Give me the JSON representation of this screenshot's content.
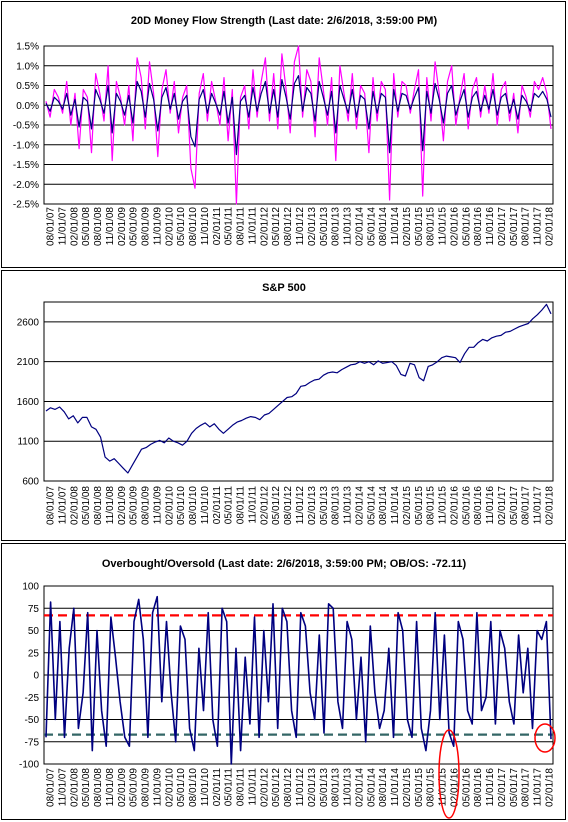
{
  "chart_data": [
    {
      "type": "line",
      "title": "20D Money Flow Strength (Last date: 2/6/2018, 3:59:00 PM)",
      "xlabel": "",
      "ylabel": "",
      "ylim": [
        -0.025,
        0.015
      ],
      "y_ticks": [
        "1.5%",
        "1.0%",
        "0.5%",
        "0.0%",
        "-0.5%",
        "-1.0%",
        "-1.5%",
        "-2.0%",
        "-2.5%"
      ],
      "x_ticks": [
        "08/01/07",
        "11/01/07",
        "02/01/08",
        "05/01/08",
        "08/01/08",
        "11/01/08",
        "02/01/09",
        "05/01/09",
        "08/01/09",
        "11/01/09",
        "02/01/10",
        "05/01/10",
        "08/01/10",
        "11/01/10",
        "02/01/11",
        "05/01/11",
        "08/01/11",
        "11/01/11",
        "02/01/12",
        "05/01/12",
        "08/01/12",
        "11/01/12",
        "02/01/13",
        "05/01/13",
        "08/01/13",
        "11/01/13",
        "02/01/14",
        "05/01/14",
        "08/01/14",
        "11/01/14",
        "02/01/15",
        "05/01/15",
        "08/01/15",
        "11/01/15",
        "02/01/16",
        "05/01/16",
        "08/01/16",
        "11/01/16",
        "02/01/17",
        "05/01/17",
        "08/01/17",
        "11/01/17",
        "02/01/18"
      ],
      "grid": true,
      "colors": {
        "magenta": "#ff00ff",
        "navy": "#000080"
      },
      "series": [
        {
          "values": [
            0.001,
            -0.003,
            0.004,
            0.002,
            -0.002,
            0.006,
            -0.005,
            0.003,
            -0.011,
            0.004,
            0.002,
            -0.012,
            0.008,
            0.003,
            -0.004,
            0.01,
            -0.014,
            0.006,
            0.002,
            -0.005,
            0.005,
            -0.009,
            0.012,
            0.007,
            -0.006,
            0.011,
            0.003,
            -0.013,
            0.004,
            0.009,
            -0.002,
            0.006,
            -0.007,
            0.002,
            0.005,
            -0.016,
            -0.021,
            0.003,
            0.008,
            -0.004,
            0.006,
            0.001,
            -0.005,
            0.007,
            -0.009,
            0.004,
            -0.025,
            0.002,
            0.005,
            -0.006,
            0.009,
            -0.003,
            0.006,
            0.012,
            -0.004,
            0.008,
            -0.006,
            0.013,
            0.004,
            -0.007,
            0.011,
            0.015,
            -0.003,
            0.009,
            0.006,
            -0.008,
            0.012,
            0.004,
            -0.005,
            0.007,
            -0.014,
            0.01,
            0.003,
            -0.004,
            0.008,
            -0.006,
            0.005,
            0.003,
            -0.012,
            0.007,
            -0.004,
            0.006,
            0.004,
            -0.024,
            0.008,
            -0.003,
            0.006,
            0.005,
            -0.002,
            0.004,
            0.009,
            -0.023,
            0.007,
            -0.004,
            0.011,
            0.003,
            -0.009,
            0.006,
            0.01,
            -0.005,
            0.002,
            0.008,
            -0.006,
            0.004,
            0.007,
            -0.003,
            0.005,
            -0.002,
            0.008,
            -0.005,
            0.004,
            0.006,
            -0.004,
            0.003,
            -0.007,
            0.005,
            0.002,
            -0.003,
            0.006,
            0.004,
            0.007,
            0.003,
            -0.006
          ]
        },
        {
          "values": [
            0.0005,
            -0.0015,
            0.002,
            0.001,
            -0.001,
            0.003,
            -0.0025,
            0.0015,
            -0.0055,
            0.002,
            0.001,
            -0.006,
            0.004,
            0.0015,
            -0.002,
            0.005,
            -0.007,
            0.003,
            0.001,
            -0.0025,
            0.0025,
            -0.0045,
            0.006,
            0.0035,
            -0.003,
            0.0055,
            0.0015,
            -0.0065,
            0.002,
            0.0045,
            -0.001,
            0.003,
            -0.0035,
            0.001,
            0.0025,
            -0.008,
            -0.0105,
            0.0015,
            0.004,
            -0.002,
            0.003,
            0.0005,
            -0.0025,
            0.0035,
            -0.0045,
            0.002,
            -0.0125,
            0.001,
            0.0025,
            -0.003,
            0.0045,
            -0.0015,
            0.003,
            0.006,
            -0.002,
            0.004,
            -0.003,
            0.0065,
            0.002,
            -0.0035,
            0.0055,
            0.0075,
            -0.0015,
            0.0045,
            0.003,
            -0.004,
            0.006,
            0.002,
            -0.0025,
            0.0035,
            -0.007,
            0.005,
            0.0015,
            -0.002,
            0.004,
            -0.003,
            0.0025,
            0.0015,
            -0.006,
            0.0035,
            -0.002,
            0.003,
            0.002,
            -0.012,
            0.004,
            -0.0015,
            0.003,
            0.0025,
            -0.001,
            0.002,
            0.0045,
            -0.0115,
            0.0035,
            -0.002,
            0.0055,
            0.0015,
            -0.0045,
            0.003,
            0.005,
            -0.0025,
            0.001,
            0.004,
            -0.003,
            0.002,
            0.0035,
            -0.0015,
            0.0025,
            -0.001,
            0.004,
            -0.0025,
            0.002,
            0.003,
            -0.002,
            0.0015,
            -0.0035,
            0.0025,
            0.001,
            -0.0015,
            0.003,
            0.002,
            0.0035,
            0.0015,
            -0.003
          ]
        }
      ]
    },
    {
      "type": "line",
      "title": "S&P 500",
      "xlabel": "",
      "ylabel": "",
      "ylim": [
        600,
        2850
      ],
      "y_ticks": [
        "2600",
        "2100",
        "1600",
        "1100",
        "600"
      ],
      "x_ticks": [
        "08/01/07",
        "11/01/07",
        "02/01/08",
        "05/01/08",
        "08/01/08",
        "11/01/08",
        "02/01/09",
        "05/01/09",
        "08/01/09",
        "11/01/09",
        "02/01/10",
        "05/01/10",
        "08/01/10",
        "11/01/10",
        "02/01/11",
        "05/01/11",
        "08/01/11",
        "11/01/11",
        "02/01/12",
        "05/01/12",
        "08/01/12",
        "11/01/12",
        "02/01/13",
        "05/01/13",
        "08/01/13",
        "11/01/13",
        "02/01/14",
        "05/01/14",
        "08/01/14",
        "11/01/14",
        "02/01/15",
        "05/01/15",
        "08/01/15",
        "11/01/15",
        "02/01/16",
        "05/01/16",
        "08/01/16",
        "11/01/16",
        "02/01/17",
        "05/01/17",
        "08/01/17",
        "11/01/17",
        "02/01/18"
      ],
      "grid": true,
      "colors": {
        "line": "#000080"
      },
      "series": [
        {
          "values": [
            1480,
            1520,
            1500,
            1530,
            1470,
            1380,
            1420,
            1330,
            1400,
            1400,
            1280,
            1250,
            1150,
            900,
            850,
            880,
            820,
            760,
            700,
            800,
            900,
            1000,
            1020,
            1060,
            1090,
            1110,
            1080,
            1140,
            1100,
            1080,
            1050,
            1100,
            1200,
            1260,
            1300,
            1330,
            1280,
            1320,
            1250,
            1200,
            1250,
            1300,
            1340,
            1360,
            1390,
            1410,
            1400,
            1370,
            1430,
            1450,
            1500,
            1550,
            1600,
            1650,
            1660,
            1700,
            1790,
            1800,
            1840,
            1870,
            1880,
            1930,
            1960,
            1970,
            1960,
            2000,
            2030,
            2060,
            2070,
            2100,
            2080,
            2100,
            2060,
            2110,
            2080,
            2090,
            2100,
            2050,
            1940,
            1920,
            2080,
            2060,
            1900,
            1860,
            2040,
            2060,
            2100,
            2150,
            2170,
            2160,
            2150,
            2090,
            2200,
            2280,
            2280,
            2340,
            2380,
            2360,
            2400,
            2420,
            2430,
            2470,
            2480,
            2510,
            2540,
            2560,
            2580,
            2640,
            2690,
            2750,
            2820,
            2700
          ]
        }
      ]
    },
    {
      "type": "line",
      "title": "Overbought/Oversold (Last date: 2/6/2018, 3:59:00 PM; OB/OS: -72.11)",
      "xlabel": "",
      "ylabel": "",
      "ylim": [
        -100,
        100
      ],
      "y_ticks": [
        "100",
        "75",
        "50",
        "25",
        "0",
        "-25",
        "-50",
        "-75",
        "-100"
      ],
      "x_ticks": [
        "08/01/07",
        "11/01/07",
        "02/01/08",
        "05/01/08",
        "08/01/08",
        "11/01/08",
        "02/01/09",
        "05/01/09",
        "08/01/09",
        "11/01/09",
        "02/01/10",
        "05/01/10",
        "08/01/10",
        "11/01/10",
        "02/01/11",
        "05/01/11",
        "08/01/11",
        "11/01/11",
        "02/01/12",
        "05/01/12",
        "08/01/12",
        "11/01/12",
        "02/01/13",
        "05/01/13",
        "08/01/13",
        "11/01/13",
        "02/01/14",
        "05/01/14",
        "08/01/14",
        "11/01/14",
        "02/01/15",
        "05/01/15",
        "08/01/15",
        "11/01/15",
        "02/01/16",
        "05/01/16",
        "08/01/16",
        "11/01/16",
        "02/01/17",
        "05/01/17",
        "08/01/17",
        "11/01/17",
        "02/01/18"
      ],
      "grid": true,
      "reference_lines": [
        {
          "value": 67,
          "color": "#ff0000"
        },
        {
          "value": -67,
          "color": "#336666"
        }
      ],
      "colors": {
        "line": "#000080",
        "ob": "#ff0000",
        "os": "#336666",
        "circle": "#ff0000"
      },
      "series": [
        {
          "values": [
            -70,
            82,
            -50,
            60,
            -70,
            30,
            75,
            -60,
            -20,
            70,
            -85,
            50,
            -40,
            -80,
            65,
            20,
            -30,
            -70,
            -80,
            60,
            85,
            40,
            -70,
            70,
            88,
            -30,
            60,
            -20,
            -75,
            55,
            40,
            -60,
            -85,
            30,
            -40,
            70,
            -50,
            -80,
            75,
            60,
            -100,
            30,
            -85,
            20,
            -55,
            65,
            -70,
            50,
            -30,
            80,
            -60,
            75,
            60,
            -40,
            -70,
            70,
            55,
            -20,
            -50,
            45,
            -65,
            80,
            75,
            -30,
            -60,
            60,
            40,
            -50,
            20,
            -75,
            55,
            -20,
            -60,
            -40,
            30,
            -70,
            70,
            50,
            -50,
            -70,
            60,
            -60,
            -85,
            -40,
            70,
            -50,
            45,
            -65,
            -80,
            60,
            40,
            -40,
            -55,
            70,
            -40,
            -25,
            60,
            -55,
            50,
            30,
            -30,
            -55,
            45,
            -20,
            30,
            -60,
            50,
            40,
            60,
            -72
          ]
        }
      ],
      "annotations": [
        {
          "shape": "ellipse",
          "color": "#ff0000",
          "note_x": "02/01/16"
        },
        {
          "shape": "ellipse",
          "color": "#ff0000",
          "note_x": "02/01/18"
        }
      ]
    }
  ]
}
